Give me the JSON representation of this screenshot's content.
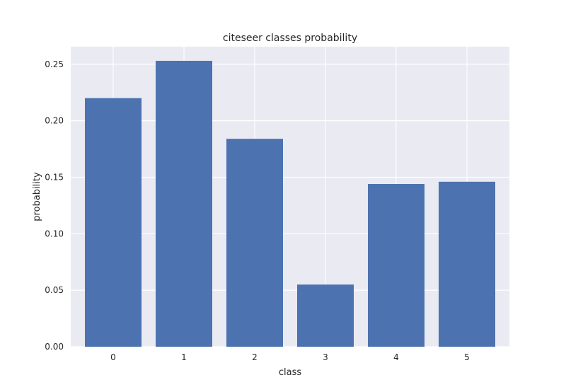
{
  "chart_data": {
    "type": "bar",
    "title": "citeseer classes probability",
    "xlabel": "class",
    "ylabel": "probability",
    "categories": [
      "0",
      "1",
      "2",
      "3",
      "4",
      "5"
    ],
    "values": [
      0.22,
      0.253,
      0.184,
      0.055,
      0.144,
      0.146
    ],
    "ylim": [
      0,
      0.2655
    ],
    "yticks": [
      0.0,
      0.05,
      0.1,
      0.15,
      0.2,
      0.25
    ],
    "ytick_labels": [
      "0.00",
      "0.05",
      "0.10",
      "0.15",
      "0.20",
      "0.25"
    ],
    "grid": true,
    "colors": {
      "bar": "#4c72b0",
      "plot_background": "#eaeaf2",
      "grid": "#ffffff"
    }
  }
}
